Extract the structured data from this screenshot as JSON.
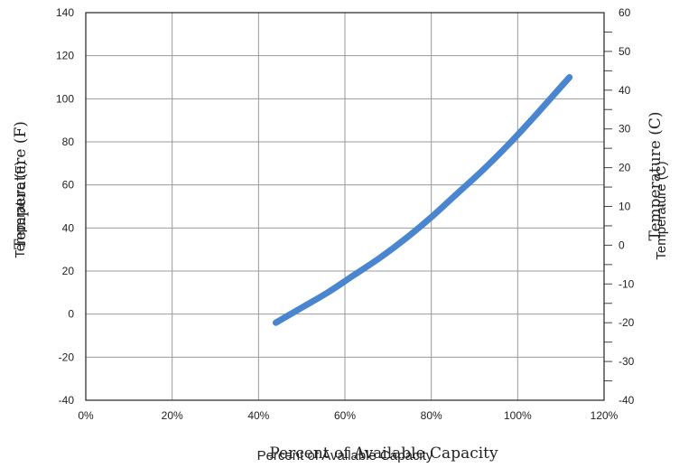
{
  "chart_data": {
    "type": "line",
    "title": "",
    "xlabel": "Percent of Available Capacity",
    "ylabel_left": "Temperature (F)",
    "ylabel_right": "Temperature (C)",
    "xlim": [
      0,
      120
    ],
    "ylim_left": [
      -40,
      140
    ],
    "ylim_right": [
      -40,
      60
    ],
    "x_ticks": [
      "0%",
      "20%",
      "40%",
      "60%",
      "80%",
      "100%",
      "120%"
    ],
    "y_left_ticks": [
      "140",
      "120",
      "100",
      "80",
      "60",
      "40",
      "20",
      "0",
      "-20",
      "-40"
    ],
    "y_right_ticks": [
      "60",
      "50",
      "40",
      "30",
      "20",
      "10",
      "0",
      "-10",
      "-20",
      "-30",
      "-40"
    ],
    "grid": true,
    "series": [
      {
        "color": "#4a86cf",
        "x": [
          44,
          50,
          56,
          62,
          68,
          74,
          80,
          86,
          92,
          98,
          104,
          108,
          112
        ],
        "y": [
          -4,
          3,
          10,
          18,
          26,
          35,
          45,
          56,
          67,
          79,
          92,
          101,
          110
        ]
      }
    ]
  }
}
